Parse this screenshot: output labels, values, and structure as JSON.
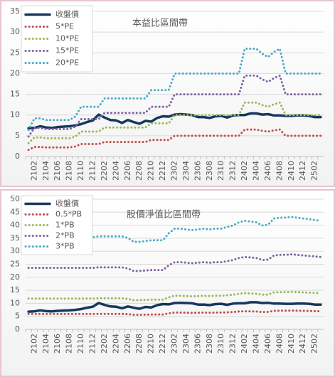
{
  "chart_data": [
    {
      "type": "line",
      "title": "本益比區間帶",
      "categories": [
        null,
        "2102",
        null,
        "2104",
        null,
        "2106",
        null,
        "2108",
        null,
        "2110",
        null,
        "2112",
        null,
        "2202",
        null,
        "2204",
        null,
        "2206",
        null,
        "2208",
        null,
        "2210",
        null,
        "2212",
        null,
        "2302",
        null,
        "2304",
        null,
        "2306",
        null,
        "2308",
        null,
        "2310",
        null,
        "2312",
        null,
        "2402",
        null,
        "2404",
        null,
        "2406",
        null,
        "2408",
        null,
        "2410",
        null,
        "2412",
        null,
        "2502",
        null
      ],
      "ylim": [
        0,
        35
      ],
      "yticks": [
        0,
        5,
        10,
        15,
        20,
        25,
        30,
        35
      ],
      "grid": true,
      "legend": "upper left",
      "series": [
        {
          "name": "收盤價",
          "color": "#17375e",
          "dash": "solid",
          "values": [
            6.8,
            6.9,
            7.3,
            7.0,
            6.9,
            7.1,
            7.2,
            7.3,
            7.5,
            7.8,
            8.3,
            8.7,
            10.1,
            9.4,
            8.8,
            8.7,
            8.1,
            8.8,
            8.3,
            7.9,
            8.6,
            8.4,
            9.3,
            9.7,
            9.6,
            10.1,
            10.2,
            10.1,
            10.0,
            9.5,
            9.5,
            9.3,
            9.7,
            9.8,
            9.4,
            9.9,
            10.0,
            10.0,
            10.4,
            10.4,
            10.1,
            10.2,
            9.9,
            9.9,
            9.8,
            9.8,
            9.9,
            9.9,
            9.8,
            9.5,
            9.5
          ]
        },
        {
          "name": "5*PE",
          "color": "#c0504d",
          "dash": "dotted",
          "values": [
            1.6,
            2.3,
            2.3,
            2.2,
            2.2,
            2.2,
            2.2,
            2.2,
            2.4,
            3.0,
            3.0,
            3.0,
            3.0,
            3.5,
            3.5,
            3.5,
            3.5,
            3.5,
            3.5,
            3.5,
            3.5,
            4.0,
            4.0,
            4.0,
            4.0,
            5,
            5,
            5,
            5,
            5,
            5,
            5,
            5,
            5,
            5,
            5,
            5,
            6.5,
            6.5,
            6.5,
            6.2,
            6.0,
            6.3,
            6.5,
            5,
            5,
            5,
            5,
            5,
            5,
            5
          ]
        },
        {
          "name": "10*PE",
          "color": "#9bbb59",
          "dash": "dotted",
          "values": [
            3.2,
            4.6,
            4.6,
            4.4,
            4.4,
            4.4,
            4.4,
            4.4,
            4.8,
            6,
            6,
            6,
            6,
            7,
            7,
            7,
            7,
            7,
            7,
            7,
            7,
            8,
            8,
            8,
            8,
            10,
            10,
            10,
            10,
            10,
            10,
            10,
            10,
            10,
            10,
            10,
            10,
            13,
            13,
            13,
            12.4,
            12,
            12.6,
            13,
            10,
            10,
            10,
            10,
            10,
            10,
            10
          ]
        },
        {
          "name": "15*PE",
          "color": "#8064a2",
          "dash": "dotted",
          "values": [
            4.8,
            6.9,
            6.9,
            6.6,
            6.6,
            6.6,
            6.6,
            6.6,
            7.2,
            9,
            9,
            9,
            9,
            10.5,
            10.5,
            10.5,
            10.5,
            10.5,
            10.5,
            10.5,
            10.5,
            12,
            12,
            12,
            12,
            15,
            15,
            15,
            15,
            15,
            15,
            15,
            15,
            15,
            15,
            15,
            15,
            19.5,
            19.5,
            19.5,
            18.6,
            18,
            18.9,
            19.5,
            15,
            15,
            15,
            15,
            15,
            15,
            15
          ]
        },
        {
          "name": "20*PE",
          "color": "#4bacc6",
          "dash": "dotted",
          "values": [
            6.4,
            9.2,
            9.2,
            8.8,
            8.8,
            8.8,
            8.8,
            8.8,
            9.6,
            12,
            12,
            12,
            12,
            14,
            14,
            14,
            14,
            14,
            14,
            14,
            14,
            16,
            16,
            16,
            16,
            20,
            20,
            20,
            20,
            20,
            20,
            20,
            20,
            20,
            20,
            20,
            20,
            26,
            26,
            26,
            24.8,
            24,
            25.2,
            26,
            20,
            20,
            20,
            20,
            20,
            20,
            20
          ]
        }
      ]
    },
    {
      "type": "line",
      "title": "股價淨值比區間帶",
      "categories": [
        null,
        "2102",
        null,
        "2104",
        null,
        "2106",
        null,
        "2108",
        null,
        "2110",
        null,
        "2112",
        null,
        "2202",
        null,
        "2204",
        null,
        "2206",
        null,
        "2208",
        null,
        "2210",
        null,
        "2212",
        null,
        "2302",
        null,
        "2304",
        null,
        "2306",
        null,
        "2308",
        null,
        "2310",
        null,
        "2312",
        null,
        "2402",
        null,
        "2404",
        null,
        "2406",
        null,
        "2408",
        null,
        "2410",
        null,
        "2412",
        null,
        "2502",
        null
      ],
      "ylim": [
        0,
        50
      ],
      "yticks": [
        0,
        5,
        10,
        15,
        20,
        25,
        30,
        35,
        40,
        45,
        50
      ],
      "grid": true,
      "legend": "upper left",
      "series": [
        {
          "name": "收盤價",
          "color": "#17375e",
          "dash": "solid",
          "values": [
            6.8,
            6.9,
            7.3,
            7.0,
            6.9,
            7.1,
            7.2,
            7.3,
            7.5,
            7.8,
            8.3,
            8.7,
            10.1,
            9.4,
            8.8,
            8.7,
            8.1,
            8.8,
            8.3,
            7.9,
            8.6,
            8.4,
            9.3,
            9.7,
            9.6,
            10.1,
            10.2,
            10.1,
            10.0,
            9.5,
            9.5,
            9.3,
            9.7,
            9.8,
            9.4,
            9.9,
            10.0,
            10.0,
            10.4,
            10.4,
            10.1,
            10.2,
            9.9,
            9.9,
            9.8,
            9.8,
            9.9,
            9.9,
            9.8,
            9.5,
            9.5
          ]
        },
        {
          "name": "0.5*PB",
          "color": "#c0504d",
          "dash": "dotted",
          "values": [
            5.9,
            5.9,
            5.9,
            5.9,
            5.9,
            5.9,
            5.9,
            5.9,
            5.9,
            5.9,
            5.9,
            5.9,
            5.95,
            5.95,
            5.95,
            5.95,
            5.95,
            5.85,
            5.6,
            5.6,
            5.65,
            5.7,
            5.7,
            5.7,
            6.15,
            6.45,
            6.45,
            6.4,
            6.35,
            6.4,
            6.45,
            6.4,
            6.45,
            6.45,
            6.55,
            6.65,
            6.85,
            6.95,
            6.9,
            6.85,
            6.65,
            6.7,
            7.1,
            7.15,
            7.15,
            7.2,
            7.15,
            7.1,
            7.05,
            7.0,
            6.95
          ]
        },
        {
          "name": "1*PB",
          "color": "#9bbb59",
          "dash": "dotted",
          "values": [
            11.8,
            11.8,
            11.8,
            11.8,
            11.8,
            11.8,
            11.8,
            11.8,
            11.8,
            11.8,
            11.8,
            11.8,
            11.9,
            11.9,
            11.9,
            11.9,
            11.9,
            11.7,
            11.2,
            11.2,
            11.3,
            11.4,
            11.4,
            11.4,
            12.3,
            12.9,
            12.9,
            12.8,
            12.7,
            12.8,
            12.9,
            12.8,
            12.9,
            12.9,
            13.1,
            13.3,
            13.7,
            13.9,
            13.8,
            13.7,
            13.3,
            13.4,
            14.2,
            14.3,
            14.3,
            14.4,
            14.3,
            14.2,
            14.1,
            14.0,
            13.9
          ]
        },
        {
          "name": "2*PB",
          "color": "#8064a2",
          "dash": "dotted",
          "values": [
            23.6,
            23.6,
            23.6,
            23.6,
            23.6,
            23.6,
            23.6,
            23.6,
            23.6,
            23.6,
            23.6,
            23.6,
            23.8,
            23.8,
            23.8,
            23.8,
            23.8,
            23.4,
            22.4,
            22.4,
            22.6,
            22.8,
            22.8,
            22.8,
            24.6,
            25.8,
            25.8,
            25.6,
            25.4,
            25.6,
            25.8,
            25.6,
            25.8,
            25.8,
            26.2,
            26.6,
            27.4,
            27.8,
            27.6,
            27.4,
            26.6,
            26.8,
            28.4,
            28.6,
            28.6,
            28.8,
            28.6,
            28.4,
            28.2,
            28.0,
            27.8
          ]
        },
        {
          "name": "3*PB",
          "color": "#4bacc6",
          "dash": "dotted",
          "values": [
            35.4,
            35.4,
            35.4,
            35.4,
            35.4,
            35.4,
            35.4,
            35.4,
            35.4,
            35.4,
            35.4,
            35.4,
            35.7,
            35.7,
            35.7,
            35.7,
            35.7,
            35.1,
            33.6,
            33.6,
            33.9,
            34.2,
            34.2,
            34.2,
            36.9,
            38.7,
            38.7,
            38.4,
            38.1,
            38.4,
            38.7,
            38.4,
            38.7,
            38.7,
            39.3,
            39.9,
            41.1,
            41.7,
            41.4,
            41.1,
            39.9,
            40.2,
            42.6,
            42.9,
            42.9,
            43.2,
            42.9,
            42.6,
            42.3,
            42.0,
            41.7
          ]
        }
      ]
    }
  ]
}
